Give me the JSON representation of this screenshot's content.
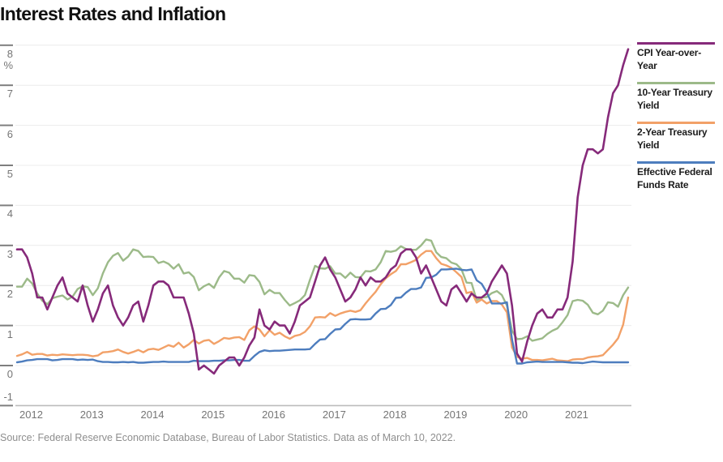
{
  "title": "Interest Rates and Inflation",
  "source_note": "Source: Federal Reserve Economic Database, Bureau of Labor Statistics. Data as of March 10, 2022.",
  "y_axis": {
    "unit_label": "%",
    "ticks": [
      8,
      7,
      6,
      5,
      4,
      3,
      2,
      1,
      0,
      -1
    ]
  },
  "x_axis": {
    "ticks": [
      "2012",
      "2013",
      "2014",
      "2015",
      "2016",
      "2017",
      "2018",
      "2019",
      "2020",
      "2021"
    ]
  },
  "colors": {
    "cpi": "#862a7a",
    "treasury_10y": "#9cba89",
    "treasury_2y": "#f2a168",
    "fed_funds": "#4d7dbe",
    "gridline": "#ececec",
    "axis_line": "#bcbcbc",
    "tick_mark": "#7e7e7e"
  },
  "chart_data": {
    "type": "line",
    "title": "Interest Rates and Inflation",
    "x_start": "2012-01",
    "x_end": "2022-02",
    "frequency": "monthly",
    "y_unit": "%",
    "ylim": [
      -1,
      8.3
    ],
    "grid": "horizontal",
    "legend_position": "right",
    "y_ticks": [
      8,
      7,
      6,
      5,
      4,
      3,
      2,
      1,
      0,
      -1
    ],
    "x_tick_labels": [
      "2012",
      "2013",
      "2014",
      "2015",
      "2016",
      "2017",
      "2018",
      "2019",
      "2020",
      "2021"
    ],
    "series": [
      {
        "name": "CPI Year-over-Year",
        "key": "cpi",
        "color": "#862a7a",
        "values": [
          2.9,
          2.9,
          2.7,
          2.3,
          1.7,
          1.7,
          1.4,
          1.7,
          2.0,
          2.2,
          1.8,
          1.7,
          1.6,
          2.0,
          1.5,
          1.1,
          1.4,
          1.8,
          2.0,
          1.5,
          1.2,
          1.0,
          1.2,
          1.5,
          1.6,
          1.1,
          1.5,
          2.0,
          2.1,
          2.1,
          2.0,
          1.7,
          1.7,
          1.7,
          1.3,
          0.8,
          -0.1,
          0.0,
          -0.1,
          -0.2,
          0.0,
          0.1,
          0.2,
          0.2,
          0.0,
          0.2,
          0.5,
          0.7,
          1.4,
          1.0,
          0.9,
          1.1,
          1.0,
          1.0,
          0.8,
          1.1,
          1.5,
          1.6,
          1.7,
          2.1,
          2.5,
          2.7,
          2.4,
          2.2,
          1.9,
          1.6,
          1.7,
          1.9,
          2.2,
          2.0,
          2.2,
          2.1,
          2.1,
          2.2,
          2.4,
          2.5,
          2.8,
          2.9,
          2.9,
          2.7,
          2.3,
          2.5,
          2.2,
          1.9,
          1.6,
          1.5,
          1.9,
          2.0,
          1.8,
          1.6,
          1.8,
          1.7,
          1.7,
          1.8,
          2.1,
          2.3,
          2.5,
          2.3,
          1.5,
          0.3,
          0.1,
          0.6,
          1.0,
          1.3,
          1.4,
          1.2,
          1.2,
          1.4,
          1.4,
          1.7,
          2.6,
          4.2,
          5.0,
          5.4,
          5.4,
          5.3,
          5.4,
          6.2,
          6.8,
          7.0,
          7.5,
          7.9
        ]
      },
      {
        "name": "10-Year Treasury Yield",
        "key": "treasury_10y",
        "color": "#9cba89",
        "values": [
          1.97,
          1.97,
          2.17,
          2.05,
          1.8,
          1.62,
          1.53,
          1.68,
          1.72,
          1.75,
          1.65,
          1.72,
          1.91,
          1.98,
          1.96,
          1.76,
          1.93,
          2.3,
          2.58,
          2.74,
          2.81,
          2.62,
          2.72,
          2.9,
          2.86,
          2.71,
          2.72,
          2.71,
          2.56,
          2.6,
          2.54,
          2.42,
          2.53,
          2.3,
          2.33,
          2.21,
          1.88,
          1.98,
          2.04,
          1.94,
          2.2,
          2.36,
          2.32,
          2.17,
          2.17,
          2.07,
          2.26,
          2.24,
          2.09,
          1.78,
          1.89,
          1.81,
          1.81,
          1.64,
          1.5,
          1.56,
          1.63,
          1.76,
          2.14,
          2.49,
          2.43,
          2.42,
          2.48,
          2.3,
          2.3,
          2.19,
          2.32,
          2.21,
          2.2,
          2.36,
          2.35,
          2.4,
          2.58,
          2.86,
          2.84,
          2.87,
          2.98,
          2.91,
          2.89,
          2.89,
          3.0,
          3.15,
          3.12,
          2.83,
          2.71,
          2.68,
          2.57,
          2.53,
          2.4,
          2.07,
          2.06,
          1.63,
          1.7,
          1.71,
          1.81,
          1.86,
          1.76,
          1.5,
          0.87,
          0.66,
          0.67,
          0.73,
          0.62,
          0.65,
          0.68,
          0.79,
          0.87,
          0.93,
          1.08,
          1.26,
          1.61,
          1.64,
          1.62,
          1.52,
          1.32,
          1.28,
          1.37,
          1.58,
          1.56,
          1.47,
          1.76,
          1.95
        ]
      },
      {
        "name": "2-Year Treasury Yield",
        "key": "treasury_2y",
        "color": "#f2a168",
        "values": [
          0.24,
          0.28,
          0.34,
          0.27,
          0.29,
          0.29,
          0.25,
          0.27,
          0.26,
          0.28,
          0.27,
          0.26,
          0.27,
          0.27,
          0.26,
          0.23,
          0.25,
          0.33,
          0.34,
          0.36,
          0.4,
          0.34,
          0.3,
          0.34,
          0.39,
          0.33,
          0.4,
          0.42,
          0.39,
          0.45,
          0.51,
          0.47,
          0.57,
          0.45,
          0.53,
          0.64,
          0.55,
          0.62,
          0.64,
          0.54,
          0.61,
          0.69,
          0.67,
          0.7,
          0.71,
          0.64,
          0.88,
          0.98,
          0.9,
          0.73,
          0.88,
          0.77,
          0.82,
          0.73,
          0.67,
          0.74,
          0.77,
          0.84,
          0.98,
          1.2,
          1.21,
          1.2,
          1.31,
          1.24,
          1.3,
          1.34,
          1.37,
          1.34,
          1.38,
          1.55,
          1.7,
          1.84,
          2.03,
          2.18,
          2.28,
          2.36,
          2.53,
          2.53,
          2.58,
          2.64,
          2.77,
          2.86,
          2.86,
          2.68,
          2.54,
          2.5,
          2.44,
          2.33,
          2.21,
          1.81,
          1.84,
          1.57,
          1.65,
          1.55,
          1.61,
          1.61,
          1.52,
          1.33,
          0.45,
          0.22,
          0.17,
          0.19,
          0.14,
          0.14,
          0.13,
          0.15,
          0.17,
          0.13,
          0.12,
          0.11,
          0.15,
          0.16,
          0.16,
          0.2,
          0.22,
          0.23,
          0.26,
          0.39,
          0.52,
          0.68,
          1.02,
          1.7
        ]
      },
      {
        "name": "Effective Federal Funds Rate",
        "key": "fed_funds",
        "color": "#4d7dbe",
        "values": [
          0.08,
          0.1,
          0.13,
          0.14,
          0.16,
          0.16,
          0.16,
          0.13,
          0.14,
          0.16,
          0.16,
          0.16,
          0.14,
          0.15,
          0.14,
          0.15,
          0.11,
          0.09,
          0.09,
          0.08,
          0.08,
          0.09,
          0.08,
          0.09,
          0.07,
          0.07,
          0.08,
          0.09,
          0.09,
          0.1,
          0.09,
          0.09,
          0.09,
          0.09,
          0.09,
          0.12,
          0.11,
          0.11,
          0.11,
          0.12,
          0.12,
          0.13,
          0.13,
          0.14,
          0.14,
          0.12,
          0.12,
          0.24,
          0.34,
          0.38,
          0.36,
          0.37,
          0.37,
          0.38,
          0.39,
          0.4,
          0.4,
          0.4,
          0.41,
          0.54,
          0.65,
          0.66,
          0.79,
          0.9,
          0.91,
          1.04,
          1.15,
          1.16,
          1.15,
          1.15,
          1.16,
          1.3,
          1.41,
          1.42,
          1.51,
          1.69,
          1.7,
          1.82,
          1.91,
          1.91,
          1.95,
          2.19,
          2.2,
          2.27,
          2.4,
          2.4,
          2.41,
          2.42,
          2.39,
          2.38,
          2.4,
          2.13,
          2.04,
          1.83,
          1.55,
          1.55,
          1.55,
          1.58,
          0.65,
          0.05,
          0.05,
          0.08,
          0.09,
          0.1,
          0.09,
          0.09,
          0.09,
          0.09,
          0.09,
          0.08,
          0.07,
          0.07,
          0.06,
          0.08,
          0.1,
          0.09,
          0.08,
          0.08,
          0.08,
          0.08,
          0.08,
          0.08
        ]
      }
    ]
  }
}
